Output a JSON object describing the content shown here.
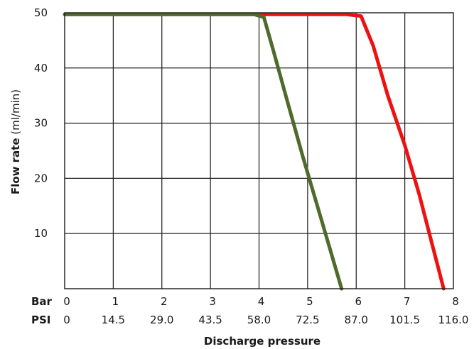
{
  "chart_data": {
    "type": "line",
    "ylabel_bold": "Flow rate",
    "ylabel_rest": " (ml/min)",
    "xlabel": "Discharge pressure",
    "xlim": [
      0,
      8
    ],
    "ylim": [
      0,
      50
    ],
    "grid": true,
    "y_ticks": [
      "10",
      "20",
      "30",
      "40",
      "50"
    ],
    "bar_row_label": "Bar",
    "psi_row_label": "PSI",
    "bar_ticks": [
      "0",
      "1",
      "2",
      "3",
      "4",
      "5",
      "6",
      "7",
      "8"
    ],
    "psi_ticks": [
      "0",
      "14.5",
      "29.0",
      "43.5",
      "58.0",
      "72.5",
      "87.0",
      "101.5",
      "116.0"
    ],
    "series": [
      {
        "color": "#ee1111",
        "points": [
          [
            0,
            49.7
          ],
          [
            5.8,
            49.7
          ],
          [
            6.1,
            49.4
          ],
          [
            6.35,
            44
          ],
          [
            6.65,
            35
          ],
          [
            7.0,
            26
          ],
          [
            7.3,
            17
          ],
          [
            7.55,
            8.5
          ],
          [
            7.8,
            0
          ]
        ]
      },
      {
        "color": "#4f6b2c",
        "points": [
          [
            0,
            49.7
          ],
          [
            3.9,
            49.7
          ],
          [
            4.1,
            49.2
          ],
          [
            4.3,
            43
          ],
          [
            4.55,
            35
          ],
          [
            4.9,
            24
          ],
          [
            5.3,
            12
          ],
          [
            5.7,
            0
          ]
        ]
      }
    ]
  }
}
